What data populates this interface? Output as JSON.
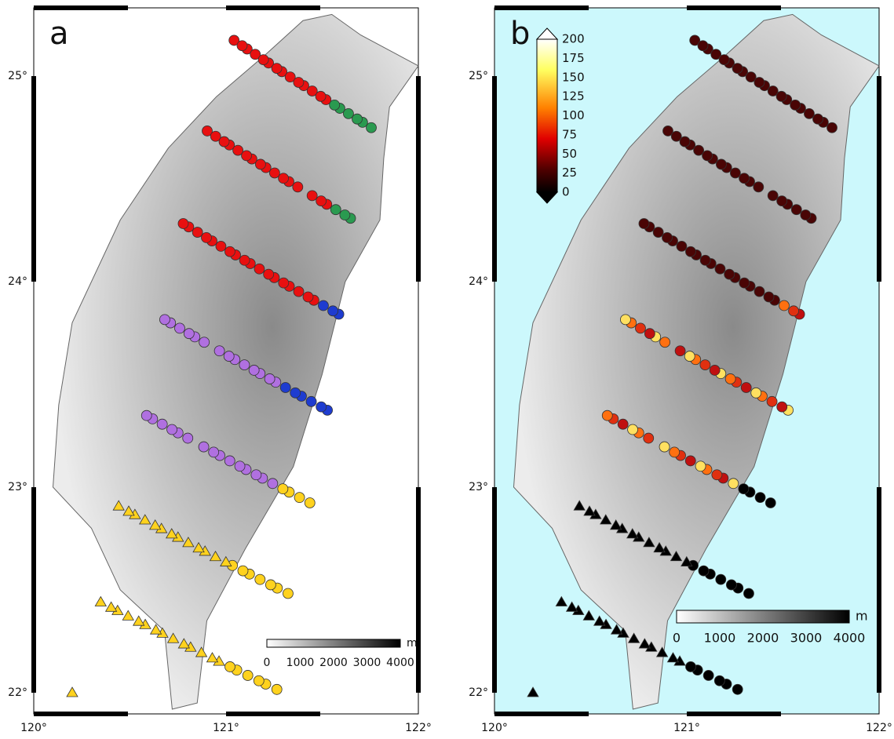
{
  "panels": [
    {
      "label": "a",
      "lat_labels": [
        "25°",
        "24°",
        "23°",
        "22°"
      ],
      "lon_labels": [
        "120°",
        "121°",
        "122°"
      ],
      "scale_bar": {
        "ticks": [
          "0",
          "1000",
          "2000",
          "3000",
          "4000"
        ],
        "unit": "m"
      }
    },
    {
      "label": "b",
      "lat_labels": [
        "25°",
        "24°",
        "23°",
        "22°"
      ],
      "lon_labels": [
        "120°",
        "121°",
        "122°"
      ],
      "colorbar": {
        "ticks": [
          "200",
          "175",
          "150",
          "125",
          "100",
          "75",
          "50",
          "25",
          "0"
        ]
      },
      "scale_bar": {
        "ticks": [
          "0",
          "1000",
          "2000",
          "3000",
          "4000"
        ],
        "unit": "m"
      }
    }
  ]
}
